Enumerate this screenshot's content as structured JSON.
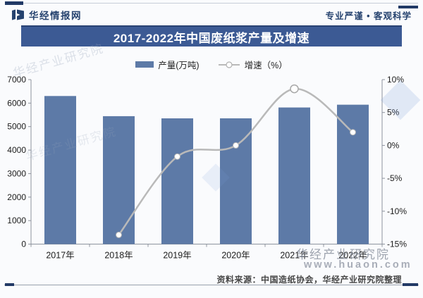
{
  "header": {
    "brand": "华经情报网",
    "slogan": "专业严谨 • 客观科学",
    "brand_color": "#26436f"
  },
  "title_bar": {
    "text": "2017-2022年中国废纸浆产量及增速",
    "bg_color": "#3c5a94",
    "text_color": "#ffffff"
  },
  "legend": {
    "items": [
      {
        "label": "产量(万吨)",
        "type": "bar",
        "color": "#5d7aa7"
      },
      {
        "label": "增速（%）",
        "type": "line",
        "color": "#b9b9b9"
      }
    ]
  },
  "chart_data": {
    "type": "bar+line",
    "title": "2017-2022年中国废纸浆产量及增速",
    "categories": [
      "2017年",
      "2018年",
      "2019年",
      "2020年",
      "2021年",
      "2022年"
    ],
    "series": [
      {
        "name": "产量(万吨)",
        "type": "bar",
        "axis": "left",
        "color": "#5d7aa7",
        "values": [
          6302,
          5444,
          5351,
          5352,
          5814,
          5932
        ]
      },
      {
        "name": "增速（%）",
        "type": "line",
        "axis": "right",
        "color": "#b9b9b9",
        "values": [
          null,
          -13.6,
          -1.7,
          0.0,
          8.6,
          2.0
        ]
      }
    ],
    "left_axis": {
      "min": 0,
      "max": 7000,
      "step": 1000,
      "suffix": ""
    },
    "right_axis": {
      "min": -15,
      "max": 10,
      "step": 5,
      "suffix": "%"
    },
    "grid": false,
    "legend_position": "top",
    "axis_color": "#8d939d",
    "label_color": "#1c1c1c",
    "marker_fill": "#ffffff",
    "marker_stroke": "#b5b5b5"
  },
  "watermarks": {
    "org": "华经产业研究院",
    "url": "www.huaon.com"
  },
  "footer": {
    "source": "资料来源：中国造纸协会，华经产业研究院整理"
  }
}
